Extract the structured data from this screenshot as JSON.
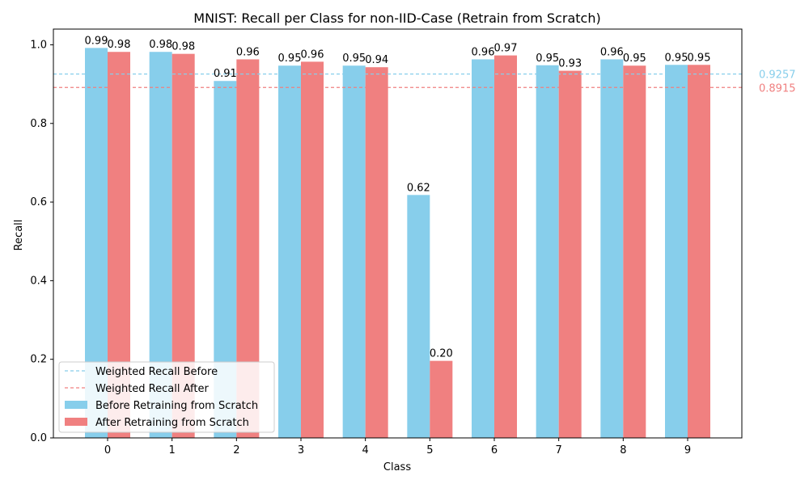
{
  "chart_data": {
    "type": "bar",
    "title": "MNIST: Recall per Class for non-IID-Case (Retrain from Scratch)",
    "xlabel": "Class",
    "ylabel": "Recall",
    "ylim": [
      0,
      1.04
    ],
    "yticks": [
      "0.0",
      "0.2",
      "0.4",
      "0.6",
      "0.8",
      "1.0"
    ],
    "categories": [
      "0",
      "1",
      "2",
      "3",
      "4",
      "5",
      "6",
      "7",
      "8",
      "9"
    ],
    "grid": false,
    "legend_position": "lower-left",
    "series": [
      {
        "name": "Before Retraining from Scratch",
        "color": "#87ceeb",
        "values": [
          0.992,
          0.982,
          0.908,
          0.947,
          0.947,
          0.618,
          0.963,
          0.948,
          0.963,
          0.949
        ],
        "labels": [
          "0.99",
          "0.98",
          "0.91",
          "0.95",
          "0.95",
          "0.62",
          "0.96",
          "0.95",
          "0.96",
          "0.95"
        ]
      },
      {
        "name": "After Retraining from Scratch",
        "color": "#f08080",
        "values": [
          0.982,
          0.977,
          0.963,
          0.957,
          0.943,
          0.196,
          0.973,
          0.934,
          0.947,
          0.949
        ],
        "labels": [
          "0.98",
          "0.98",
          "0.96",
          "0.96",
          "0.94",
          "0.20",
          "0.97",
          "0.93",
          "0.95",
          "0.95"
        ]
      }
    ],
    "reference_lines": [
      {
        "name": "Weighted Recall Before",
        "value": 0.9257,
        "label": "0.9257",
        "color": "#87ceeb"
      },
      {
        "name": "Weighted Recall After",
        "value": 0.8915,
        "label": "0.8915",
        "color": "#f08080"
      }
    ]
  }
}
